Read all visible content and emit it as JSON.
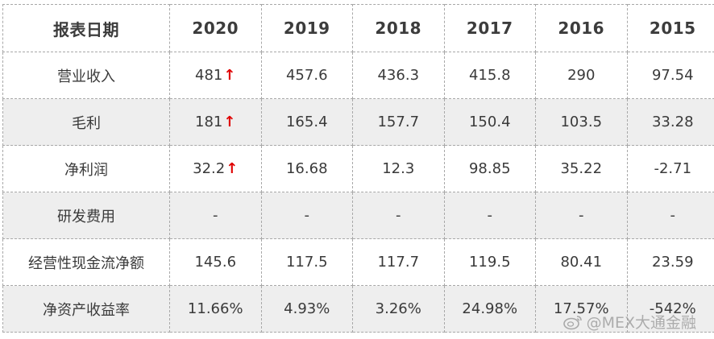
{
  "table": {
    "header": [
      "报表日期",
      "2020",
      "2019",
      "2018",
      "2017",
      "2016",
      "2015"
    ],
    "rows": [
      {
        "label": "营业收入",
        "values": [
          "481",
          "457.6",
          "436.3",
          "415.8",
          "290",
          "97.54"
        ],
        "up_arrow": "↑"
      },
      {
        "label": "毛利",
        "values": [
          "181",
          "165.4",
          "157.7",
          "150.4",
          "103.5",
          "33.28"
        ],
        "up_arrow": "↑"
      },
      {
        "label": "净利润",
        "values": [
          "32.2",
          "16.68",
          "12.3",
          "98.85",
          "35.22",
          "-2.71"
        ],
        "up_arrow": "↑"
      },
      {
        "label": "研发费用",
        "values": [
          "-",
          "-",
          "-",
          "-",
          "-",
          "-"
        ]
      },
      {
        "label": "经营性现金流净额",
        "values": [
          "145.6",
          "117.5",
          "117.7",
          "119.5",
          "80.41",
          "23.59"
        ]
      },
      {
        "label": "净资产收益率",
        "values": [
          "11.66%",
          "4.93%",
          "3.26%",
          "24.98%",
          "17.57%",
          "-542%"
        ]
      }
    ]
  },
  "watermark": {
    "text": "@MEX大通金融",
    "icon": "weibo-icon"
  },
  "colors": {
    "arrow": "#e00000",
    "shaded_row": "#eeeeee",
    "border": "#a8a8a8"
  }
}
